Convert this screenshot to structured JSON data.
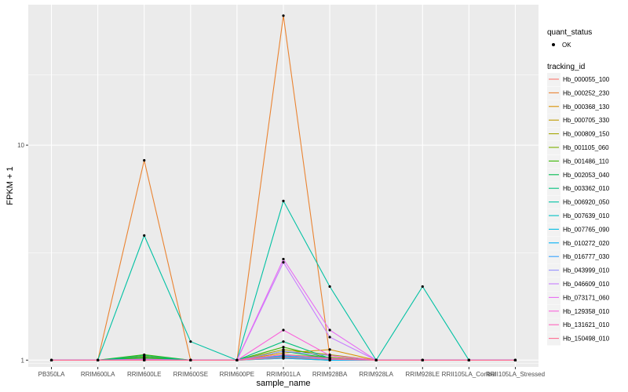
{
  "chart_data": {
    "type": "line",
    "xlabel": "sample_name",
    "ylabel": "FPKM + 1",
    "y_scale": "log10",
    "ylim": [
      0.93,
      45
    ],
    "yticks": [
      1,
      10
    ],
    "grid": true,
    "legend_position": "right",
    "categories": [
      "PB350LA",
      "RRIM600LA",
      "RRIM600LE",
      "RRIM600SE",
      "RRIM600PE",
      "RRIM901LA",
      "RRIM928BA",
      "RRIM928LA",
      "RRIM928LE",
      "RRII105LA_Control",
      "RRII105LA_Stressed"
    ],
    "point_legend": {
      "title": "quant_status",
      "entries": [
        "OK"
      ]
    },
    "series_legend_title": "tracking_id",
    "series": [
      {
        "name": "Hb_000055_100",
        "color": "#F8766D",
        "values": [
          1,
          1,
          1.0,
          1,
          1,
          1.04,
          1.01,
          1,
          1,
          1,
          1
        ]
      },
      {
        "name": "Hb_000252_230",
        "color": "#EA8331",
        "values": [
          1,
          1,
          8.5,
          1,
          1,
          40,
          1.05,
          1,
          1,
          1,
          1
        ]
      },
      {
        "name": "Hb_000368_130",
        "color": "#D89000",
        "values": [
          1,
          1,
          1.02,
          1,
          1,
          1.08,
          1.12,
          1,
          1,
          1,
          1
        ]
      },
      {
        "name": "Hb_000705_330",
        "color": "#C09B00",
        "values": [
          1,
          1,
          1.0,
          1,
          1,
          1.02,
          1.0,
          1,
          1,
          1,
          1
        ]
      },
      {
        "name": "Hb_000809_150",
        "color": "#A3A500",
        "values": [
          1,
          1,
          1.04,
          1,
          1,
          1.12,
          1.06,
          1,
          1,
          1,
          1
        ]
      },
      {
        "name": "Hb_001105_060",
        "color": "#7CAE00",
        "values": [
          1,
          1,
          1.02,
          1,
          1,
          1.06,
          1.03,
          1,
          1,
          1,
          1
        ]
      },
      {
        "name": "Hb_001486_110",
        "color": "#39B600",
        "values": [
          1,
          1,
          1.06,
          1,
          1,
          1.15,
          1.02,
          1,
          1,
          1,
          1
        ]
      },
      {
        "name": "Hb_002053_040",
        "color": "#00BB4E",
        "values": [
          1,
          1,
          1.03,
          1,
          1,
          1.1,
          1.02,
          1,
          1,
          1,
          1
        ]
      },
      {
        "name": "Hb_003362_010",
        "color": "#00BF7D",
        "values": [
          1,
          1,
          1.05,
          1,
          1,
          1.22,
          1.02,
          1,
          1,
          1,
          1
        ]
      },
      {
        "name": "Hb_006920_050",
        "color": "#00C1A3",
        "values": [
          1,
          1,
          3.8,
          1.22,
          1,
          5.5,
          2.2,
          1,
          2.2,
          1,
          1
        ]
      },
      {
        "name": "Hb_007639_010",
        "color": "#00BFC4",
        "values": [
          1,
          1,
          1.01,
          1,
          1,
          1.03,
          1.0,
          1,
          1,
          1,
          1
        ]
      },
      {
        "name": "Hb_007765_090",
        "color": "#00BAE0",
        "values": [
          1,
          1,
          1.0,
          1,
          1,
          1.04,
          1.01,
          1,
          1,
          1,
          1
        ]
      },
      {
        "name": "Hb_010272_020",
        "color": "#00B0F6",
        "values": [
          1,
          1,
          1.0,
          1,
          1,
          1.02,
          1.0,
          1,
          1,
          1,
          1
        ]
      },
      {
        "name": "Hb_016777_030",
        "color": "#35A2FF",
        "values": [
          1,
          1,
          1.01,
          1,
          1,
          1.05,
          1.02,
          1,
          1,
          1,
          1
        ]
      },
      {
        "name": "Hb_043999_010",
        "color": "#9590FF",
        "values": [
          1,
          1,
          1.0,
          1,
          1,
          1.1,
          1.05,
          1,
          1,
          1,
          1
        ]
      },
      {
        "name": "Hb_046609_010",
        "color": "#C77CFF",
        "values": [
          1,
          1,
          1.01,
          1,
          1,
          2.85,
          1.28,
          1,
          1,
          1,
          1
        ]
      },
      {
        "name": "Hb_073171_060",
        "color": "#E76BF3",
        "values": [
          1,
          1,
          1.0,
          1,
          1,
          2.95,
          1.38,
          1,
          1,
          1,
          1
        ]
      },
      {
        "name": "Hb_129358_010",
        "color": "#FA62DB",
        "values": [
          1,
          1,
          1.0,
          1,
          1,
          1.38,
          1.05,
          1,
          1,
          1,
          1
        ]
      },
      {
        "name": "Hb_131621_010",
        "color": "#FF62BC",
        "values": [
          1,
          1,
          1.0,
          1,
          1,
          1.06,
          1.02,
          1,
          1,
          1,
          1
        ]
      },
      {
        "name": "Hb_150498_010",
        "color": "#FF6C91",
        "values": [
          1,
          1,
          1.0,
          1,
          1,
          1.03,
          1.01,
          1,
          1,
          1,
          1
        ]
      }
    ]
  }
}
